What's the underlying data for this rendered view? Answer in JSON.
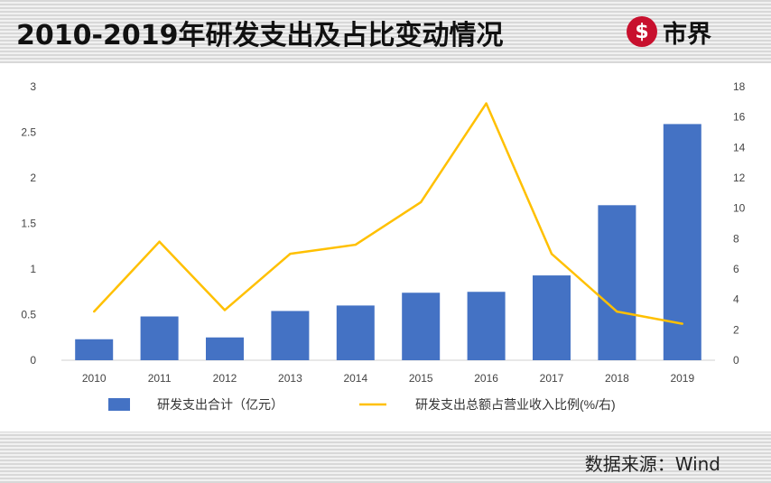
{
  "header": {
    "title": "2010-2019年研发支出及占比变动情况",
    "logo_text": "市界",
    "logo_symbol": "$"
  },
  "footer": {
    "source": "数据来源：Wind"
  },
  "colors": {
    "bar": "#4472c4",
    "line": "#ffc000",
    "logo": "#c8102e"
  },
  "chart_data": {
    "type": "bar",
    "categories": [
      "2010",
      "2011",
      "2012",
      "2013",
      "2014",
      "2015",
      "2016",
      "2017",
      "2018",
      "2019"
    ],
    "series": [
      {
        "name": "研发支出合计（亿元）",
        "type": "bar",
        "axis": "left",
        "values": [
          0.23,
          0.48,
          0.25,
          0.54,
          0.6,
          0.74,
          0.75,
          0.93,
          1.7,
          2.59
        ]
      },
      {
        "name": "研发支出总额占营业收入比例(%/右)",
        "type": "line",
        "axis": "right",
        "values": [
          3.2,
          7.8,
          3.3,
          7.0,
          7.6,
          10.4,
          16.9,
          7.0,
          3.2,
          2.4
        ]
      }
    ],
    "y_left": {
      "min": 0,
      "max": 3,
      "ticks": [
        "0",
        "0.5",
        "1",
        "1.5",
        "2",
        "2.5",
        "3"
      ]
    },
    "y_right": {
      "min": 0,
      "max": 18,
      "ticks": [
        "0",
        "2",
        "4",
        "6",
        "8",
        "10",
        "12",
        "14",
        "16",
        "18"
      ]
    },
    "grid": false,
    "legend": "bottom"
  }
}
